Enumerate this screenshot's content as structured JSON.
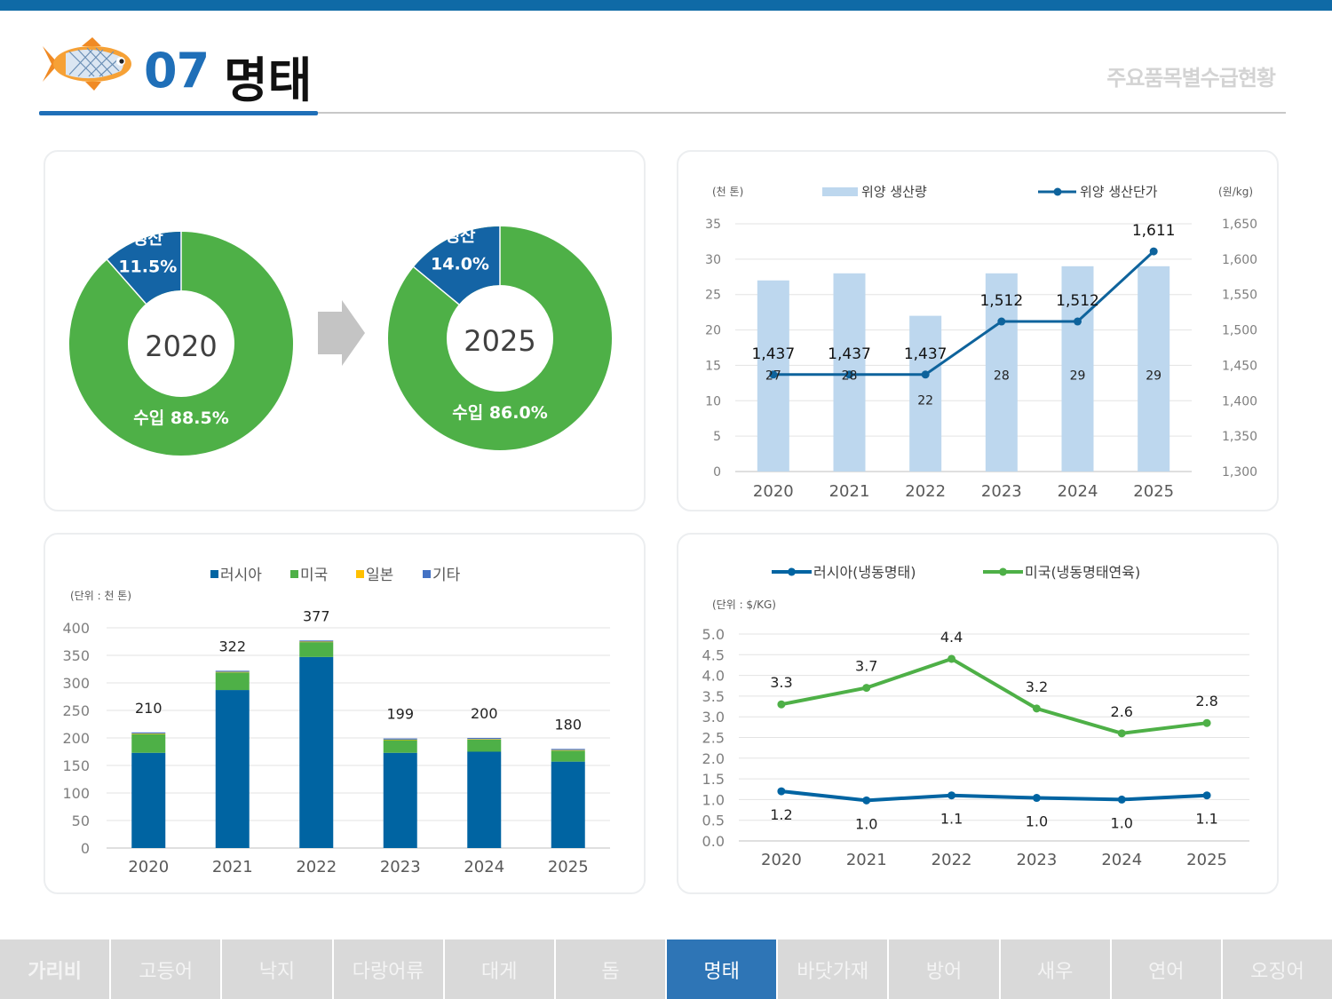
{
  "header": {
    "number": "07",
    "title": "명태",
    "subtitle": "주요품목별수급현황"
  },
  "tabs": [
    {
      "label": "가리비",
      "active": false,
      "bold": true
    },
    {
      "label": "고등어",
      "active": false,
      "bold": false
    },
    {
      "label": "낙지",
      "active": false,
      "bold": false
    },
    {
      "label": "다랑어류",
      "active": false,
      "bold": false
    },
    {
      "label": "대게",
      "active": false,
      "bold": false
    },
    {
      "label": "돔",
      "active": false,
      "bold": false
    },
    {
      "label": "명태",
      "active": true,
      "bold": false
    },
    {
      "label": "바닷가재",
      "active": false,
      "bold": false
    },
    {
      "label": "방어",
      "active": false,
      "bold": false
    },
    {
      "label": "새우",
      "active": false,
      "bold": false
    },
    {
      "label": "연어",
      "active": false,
      "bold": false
    },
    {
      "label": "오징어",
      "active": false,
      "bold": false
    }
  ],
  "colors": {
    "accent": "#1f6fb8",
    "green": "#4eb047",
    "navy": "#1464a5",
    "lightblue": "#bdd7ee",
    "lineblue": "#0e639c",
    "russia": "#0064a2",
    "japan": "#ffc000",
    "other": "#4472c4"
  },
  "chart_data": [
    {
      "type": "pie",
      "variant": "donut-pair",
      "centers": [
        "2020",
        "2025"
      ],
      "arrow_icon": "right-arrow",
      "donuts": [
        {
          "center": "2020",
          "slices": [
            {
              "name": "생산",
              "value": 11.5,
              "label": "11.5%"
            },
            {
              "name": "수입",
              "value": 88.5,
              "label": "88.5%"
            }
          ]
        },
        {
          "center": "2025",
          "slices": [
            {
              "name": "생산",
              "value": 14.0,
              "label": "14.0%"
            },
            {
              "name": "수입",
              "value": 86.0,
              "label": "86.0%"
            }
          ]
        }
      ]
    },
    {
      "type": "bar",
      "combo": "bar-line",
      "categories": [
        "2020",
        "2021",
        "2022",
        "2023",
        "2024",
        "2025"
      ],
      "left_unit": "(천 톤)",
      "right_unit": "(원/kg)",
      "series": [
        {
          "name": "위양 생산량",
          "axis": "left",
          "values": [
            27,
            28,
            22,
            28,
            29,
            29
          ],
          "labels": [
            "27",
            "28",
            "22",
            "28",
            "29",
            "29"
          ]
        },
        {
          "name": "위양 생산단가",
          "axis": "right",
          "type": "line",
          "values": [
            1437,
            1437,
            1437,
            1512,
            1512,
            1611
          ],
          "labels": [
            "1,437",
            "1,437",
            "1,437",
            "1,512",
            "1,512",
            "1,611"
          ]
        }
      ],
      "ylim": [
        0,
        35
      ],
      "yticks": [
        "0",
        "5",
        "10",
        "15",
        "20",
        "25",
        "30",
        "35"
      ],
      "y2lim": [
        1300,
        1650
      ],
      "y2ticks": [
        "1,300",
        "1,350",
        "1,400",
        "1,450",
        "1,500",
        "1,550",
        "1,600",
        "1,650"
      ],
      "grid": true,
      "legend": "top"
    },
    {
      "type": "bar",
      "stacked": true,
      "categories": [
        "2020",
        "2021",
        "2022",
        "2023",
        "2024",
        "2025"
      ],
      "unit": "(단위 : 천 톤)",
      "series": [
        {
          "name": "러시아",
          "values": [
            173,
            287,
            347,
            173,
            175,
            157
          ]
        },
        {
          "name": "미국",
          "values": [
            34,
            32,
            27,
            23,
            22,
            20
          ]
        },
        {
          "name": "일본",
          "values": [
            1,
            1,
            1,
            1,
            1,
            1
          ]
        },
        {
          "name": "기타",
          "values": [
            2,
            2,
            2,
            2,
            2,
            2
          ]
        }
      ],
      "totals": [
        "210",
        "322",
        "377",
        "199",
        "200",
        "180"
      ],
      "ylim": [
        0,
        400
      ],
      "yticks": [
        "0",
        "50",
        "100",
        "150",
        "200",
        "250",
        "300",
        "350",
        "400"
      ],
      "grid": true,
      "legend": "top"
    },
    {
      "type": "line",
      "categories": [
        "2020",
        "2021",
        "2022",
        "2023",
        "2024",
        "2025"
      ],
      "unit": "(단위 : $/KG)",
      "series": [
        {
          "name": "러시아(냉동명태)",
          "values": [
            1.2,
            0.98,
            1.1,
            1.04,
            1.0,
            1.1
          ],
          "labels": [
            "1.2",
            "1.0",
            "1.1",
            "1.0",
            "1.0",
            "1.1"
          ]
        },
        {
          "name": "미국(냉동명태연육)",
          "values": [
            3.3,
            3.7,
            4.4,
            3.2,
            2.6,
            2.85
          ],
          "labels": [
            "3.3",
            "3.7",
            "4.4",
            "3.2",
            "2.6",
            "2.8"
          ]
        }
      ],
      "ylim": [
        0,
        5
      ],
      "yticks": [
        "0.0",
        "0.5",
        "1.0",
        "1.5",
        "2.0",
        "2.5",
        "3.0",
        "3.5",
        "4.0",
        "4.5",
        "5.0"
      ],
      "grid": true,
      "legend": "top"
    }
  ]
}
